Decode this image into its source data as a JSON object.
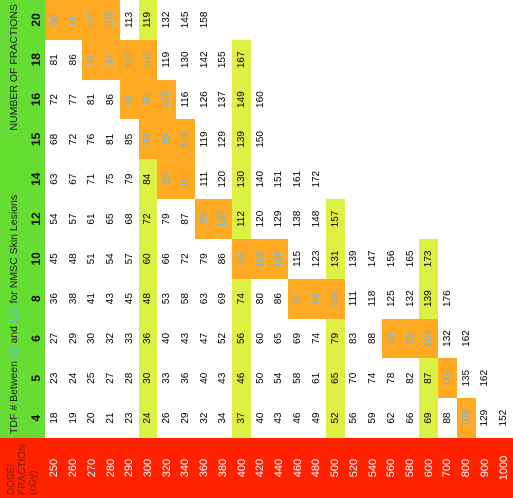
{
  "table": {
    "corner": "DOSE/ FRACTION (cGy)",
    "title_start": "TDF # Between ",
    "range_low": "90",
    "title_mid": " and ",
    "range_high": "110",
    "title_end": " for NMSC Skin Lesions",
    "header_label": "NUMBER OF FRACTIONS",
    "fractions": [
      "4",
      "5",
      "6",
      "8",
      "10",
      "12",
      "14",
      "15",
      "16",
      "18",
      "20"
    ],
    "rows": [
      {
        "dose": "250",
        "highlight": false,
        "values": [
          "18",
          "23",
          "27",
          "36",
          "45",
          "54",
          "63",
          "68",
          "72",
          "81",
          "90"
        ]
      },
      {
        "dose": "260",
        "highlight": false,
        "values": [
          "19",
          "24",
          "29",
          "38",
          "48",
          "57",
          "67",
          "72",
          "77",
          "86",
          "96"
        ]
      },
      {
        "dose": "270",
        "highlight": false,
        "values": [
          "20",
          "25",
          "30",
          "41",
          "51",
          "61",
          "71",
          "76",
          "81",
          "91",
          "102"
        ]
      },
      {
        "dose": "280",
        "highlight": false,
        "values": [
          "21",
          "27",
          "32",
          "43",
          "54",
          "65",
          "75",
          "81",
          "86",
          "97",
          "107"
        ]
      },
      {
        "dose": "290",
        "highlight": false,
        "values": [
          "23",
          "28",
          "33",
          "45",
          "57",
          "68",
          "79",
          "85",
          "91",
          "102",
          "113"
        ]
      },
      {
        "dose": "300",
        "highlight": true,
        "values": [
          "24",
          "30",
          "36",
          "48",
          "60",
          "72",
          "84",
          "90",
          "96",
          "107",
          "119"
        ]
      },
      {
        "dose": "320",
        "highlight": false,
        "values": [
          "26",
          "33",
          "40",
          "53",
          "66",
          "79",
          "93",
          "99",
          "105",
          "119",
          "132"
        ]
      },
      {
        "dose": "340",
        "highlight": false,
        "values": [
          "29",
          "36",
          "43",
          "58",
          "72",
          "87",
          "101",
          "109",
          "116",
          "130",
          "145"
        ]
      },
      {
        "dose": "360",
        "highlight": false,
        "values": [
          "32",
          "40",
          "47",
          "63",
          "79",
          "95",
          "111",
          "119",
          "126",
          "142",
          "158"
        ]
      },
      {
        "dose": "380",
        "highlight": false,
        "values": [
          "34",
          "43",
          "52",
          "69",
          "86",
          "103",
          "120",
          "129",
          "137",
          "155",
          null
        ]
      },
      {
        "dose": "400",
        "highlight": true,
        "values": [
          "37",
          "46",
          "56",
          "74",
          "93",
          "112",
          "130",
          "139",
          "149",
          "167",
          null
        ]
      },
      {
        "dose": "420",
        "highlight": false,
        "values": [
          "40",
          "50",
          "60",
          "80",
          "100",
          "120",
          "140",
          "150",
          "160",
          null,
          null
        ]
      },
      {
        "dose": "440",
        "highlight": false,
        "values": [
          "43",
          "54",
          "65",
          "86",
          "108",
          "129",
          "151",
          null,
          null,
          null,
          null
        ]
      },
      {
        "dose": "460",
        "highlight": false,
        "values": [
          "46",
          "58",
          "69",
          "92",
          "115",
          "138",
          "161",
          null,
          null,
          null,
          null
        ]
      },
      {
        "dose": "480",
        "highlight": false,
        "values": [
          "49",
          "61",
          "74",
          "98",
          "123",
          "148",
          "172",
          null,
          null,
          null,
          null
        ]
      },
      {
        "dose": "500",
        "highlight": true,
        "values": [
          "52",
          "65",
          "79",
          "105",
          "131",
          "157",
          null,
          null,
          null,
          null,
          null
        ]
      },
      {
        "dose": "520",
        "highlight": false,
        "values": [
          "56",
          "70",
          "83",
          "111",
          "139",
          null,
          null,
          null,
          null,
          null,
          null
        ]
      },
      {
        "dose": "540",
        "highlight": false,
        "values": [
          "59",
          "74",
          "88",
          "118",
          "147",
          null,
          null,
          null,
          null,
          null,
          null
        ]
      },
      {
        "dose": "560",
        "highlight": false,
        "values": [
          "62",
          "78",
          "94",
          "125",
          "156",
          null,
          null,
          null,
          null,
          null,
          null
        ]
      },
      {
        "dose": "580",
        "highlight": false,
        "values": [
          "66",
          "82",
          "99",
          "132",
          "165",
          null,
          null,
          null,
          null,
          null,
          null
        ]
      },
      {
        "dose": "600",
        "highlight": true,
        "values": [
          "69",
          "87",
          "104",
          "139",
          "173",
          null,
          null,
          null,
          null,
          null,
          null
        ]
      },
      {
        "dose": "700",
        "highlight": false,
        "values": [
          "88",
          "110",
          "132",
          "176",
          null,
          null,
          null,
          null,
          null,
          null,
          null
        ]
      },
      {
        "dose": "800",
        "highlight": false,
        "values": [
          "108",
          "135",
          "162",
          null,
          null,
          null,
          null,
          null,
          null,
          null,
          null
        ]
      },
      {
        "dose": "900",
        "highlight": false,
        "values": [
          "129",
          "162",
          null,
          null,
          null,
          null,
          null,
          null,
          null,
          null,
          null
        ]
      },
      {
        "dose": "1000",
        "highlight": false,
        "values": [
          "152",
          null,
          null,
          null,
          null,
          null,
          null,
          null,
          null,
          null,
          null
        ]
      }
    ]
  }
}
